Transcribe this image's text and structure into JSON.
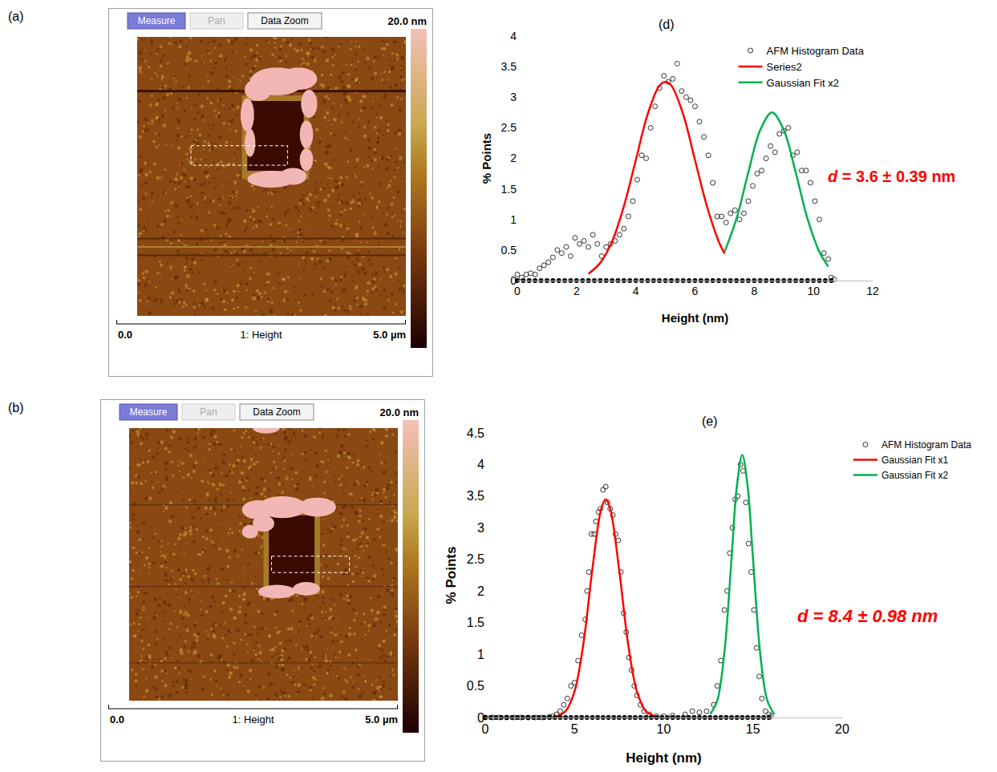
{
  "afm_images": [
    {
      "panel": "(a)",
      "buttons": [
        "Measure",
        "Pan",
        "Data Zoom"
      ],
      "color_scale_label": "20.0 nm",
      "x_start": "0.0",
      "channel": "1: Height",
      "x_end": "5.0 µm"
    },
    {
      "panel": "(b)",
      "buttons": [
        "Measure",
        "Pan",
        "Data Zoom"
      ],
      "color_scale_label": "20.0 nm",
      "x_start": "0.0",
      "channel": "1: Height",
      "x_end": "5.0 µm"
    }
  ],
  "chart_data": [
    {
      "type": "scatter",
      "title": "(d)",
      "x_label": "Height (nm)",
      "y_label": "% Points",
      "xlim": [
        0,
        12
      ],
      "xticks": [
        0,
        2,
        4,
        6,
        8,
        10,
        12
      ],
      "ylim": [
        0,
        4
      ],
      "yticks": [
        0,
        0.5,
        1,
        1.5,
        2,
        2.5,
        3,
        3.5,
        4
      ],
      "grid": false,
      "legend": "upper right",
      "annotations": [
        "d = 3.6 ± 0.39 nm"
      ],
      "series": [
        {
          "name": "AFM Histogram Data",
          "type": "scatter",
          "marker": "open_circle",
          "color": "#333333",
          "x": [
            0,
            0.15,
            0.3,
            0.45,
            0.6,
            0.75,
            0.9,
            1.05,
            1.2,
            1.35,
            1.5,
            1.65,
            1.8,
            1.95,
            2.1,
            2.25,
            2.4,
            2.55,
            2.7,
            2.85,
            3,
            3.15,
            3.3,
            3.45,
            3.6,
            3.75,
            3.9,
            4.05,
            4.2,
            4.35,
            4.5,
            4.65,
            4.8,
            4.95,
            5.1,
            5.25,
            5.4,
            5.55,
            5.7,
            5.85,
            6,
            6.15,
            6.3,
            6.45,
            6.6,
            6.75,
            6.9,
            7.05,
            7.2,
            7.35,
            7.5,
            7.65,
            7.8,
            7.95,
            8.1,
            8.25,
            8.4,
            8.55,
            8.7,
            8.85,
            9,
            9.15,
            9.3,
            9.45,
            9.6,
            9.75,
            9.9,
            10.05,
            10.2,
            10.35,
            10.5,
            10.6,
            10.7
          ],
          "values": [
            0.1,
            0.05,
            0.1,
            0.12,
            0.1,
            0.2,
            0.25,
            0.3,
            0.38,
            0.5,
            0.45,
            0.55,
            0.4,
            0.7,
            0.6,
            0.65,
            0.55,
            0.75,
            0.6,
            0.4,
            0.55,
            0.6,
            0.65,
            0.75,
            0.85,
            1.05,
            1.3,
            1.65,
            2.05,
            2,
            2.5,
            2.85,
            3.15,
            3.35,
            3.25,
            3.3,
            3.55,
            3.1,
            3,
            2.95,
            2.85,
            2.6,
            2.35,
            2.05,
            1.6,
            1.05,
            1.05,
            0.95,
            1.1,
            1.15,
            1,
            1.1,
            1.3,
            1.55,
            1.75,
            1.8,
            2,
            2.2,
            2.1,
            2.4,
            2.45,
            2.5,
            2.05,
            2.1,
            1.8,
            1.8,
            1.6,
            1.3,
            1,
            0.45,
            0.35,
            0.05,
            0.02
          ]
        },
        {
          "name": "Series2",
          "type": "line",
          "color": "#ff0000",
          "x": [
            2.4,
            2.8,
            3.2,
            3.6,
            4,
            4.4,
            4.8,
            5,
            5.2,
            5.6,
            6,
            6.4,
            6.8,
            7
          ],
          "values": [
            0.11,
            0.29,
            0.64,
            1.22,
            1.97,
            2.72,
            3.19,
            3.25,
            3.19,
            2.72,
            1.97,
            1.22,
            0.64,
            0.44
          ]
        },
        {
          "name": "Gaussian Fit x2",
          "type": "line",
          "color": "#00b050",
          "x": [
            7,
            7.4,
            7.8,
            8.2,
            8.6,
            9,
            9.4,
            9.8,
            10.2,
            10.5
          ],
          "values": [
            0.47,
            1.01,
            1.77,
            2.46,
            2.75,
            2.46,
            1.77,
            1.01,
            0.47,
            0.23
          ]
        },
        {
          "type": "scatter",
          "marker": "filled_circle",
          "color": "#000000",
          "x": [
            0,
            0.2,
            0.4,
            0.6,
            0.8,
            1,
            1.2,
            1.4,
            1.6,
            1.8,
            2,
            2.2,
            2.4,
            2.6,
            2.8,
            3,
            3.2,
            3.4,
            3.6,
            3.8,
            4,
            4.2,
            4.4,
            4.6,
            4.8,
            5,
            5.2,
            5.4,
            5.6,
            5.8,
            6,
            6.2,
            6.4,
            6.6,
            6.8,
            7,
            7.2,
            7.4,
            7.6,
            7.8,
            8,
            8.2,
            8.4,
            8.6,
            8.8,
            9,
            9.2,
            9.4,
            9.6,
            9.8,
            10,
            10.2,
            10.4,
            10.6
          ],
          "values": [
            0,
            0,
            0,
            0,
            0,
            0,
            0,
            0,
            0,
            0,
            0,
            0,
            0,
            0,
            0,
            0,
            0,
            0,
            0,
            0,
            0,
            0,
            0,
            0,
            0,
            0,
            0,
            0,
            0,
            0,
            0,
            0,
            0,
            0,
            0,
            0,
            0,
            0,
            0,
            0,
            0,
            0,
            0,
            0,
            0,
            0,
            0,
            0,
            0,
            0,
            0,
            0,
            0,
            0
          ]
        }
      ]
    },
    {
      "type": "scatter",
      "title": "(e)",
      "x_label": "Height (nm)",
      "y_label": "% Points",
      "xlim": [
        0,
        20
      ],
      "xticks": [
        0,
        5,
        10,
        15,
        20
      ],
      "ylim": [
        0,
        4.5
      ],
      "yticks": [
        0,
        0.5,
        1,
        1.5,
        2,
        2.5,
        3,
        3.5,
        4,
        4.5
      ],
      "grid": false,
      "legend": "right",
      "annotations": [
        "d = 8.4 ± 0.98 nm"
      ],
      "series": [
        {
          "name": "AFM Histogram Data",
          "type": "scatter",
          "marker": "open_circle",
          "color": "#333333",
          "x": [
            0,
            0.4,
            0.8,
            1.2,
            1.6,
            2,
            2.4,
            2.8,
            3.2,
            3.6,
            3.8,
            4,
            4.2,
            4.4,
            4.6,
            4.8,
            5,
            5.2,
            5.4,
            5.6,
            5.7,
            5.8,
            5.95,
            6.1,
            6.2,
            6.35,
            6.45,
            6.6,
            6.75,
            6.85,
            7,
            7.15,
            7.3,
            7.45,
            7.6,
            7.75,
            7.9,
            8.05,
            8.2,
            8.35,
            8.5,
            8.7,
            8.9,
            9.2,
            9.6,
            10,
            10.5,
            11.2,
            11.6,
            12,
            12.4,
            12.8,
            13,
            13.2,
            13.4,
            13.55,
            13.7,
            13.85,
            14,
            14.15,
            14.3,
            14.45,
            14.6,
            14.75,
            14.9,
            15.05,
            15.2,
            15.35,
            15.5,
            15.7,
            15.9,
            16
          ],
          "values": [
            0,
            0,
            0,
            0,
            0,
            0,
            0,
            0,
            0,
            0.01,
            0.02,
            0.05,
            0.1,
            0.2,
            0.3,
            0.5,
            0.55,
            0.9,
            1.3,
            1.55,
            2,
            2.3,
            2.9,
            2.9,
            3.1,
            3.25,
            3.3,
            3.6,
            3.65,
            3.4,
            3.3,
            3.2,
            2.9,
            2.8,
            2.3,
            1.65,
            1.35,
            0.95,
            0.75,
            0.5,
            0.35,
            0.2,
            0.1,
            0.05,
            0.02,
            0.02,
            0.03,
            0.05,
            0.1,
            0.08,
            0.1,
            0.2,
            0.5,
            0.9,
            1.7,
            2,
            2.6,
            3,
            3.45,
            3.5,
            4,
            3.9,
            3.4,
            2.75,
            2.3,
            1.7,
            1.1,
            0.65,
            0.3,
            0.1,
            0.05,
            0.02
          ]
        },
        {
          "name": "Gaussian Fit x1",
          "type": "line",
          "color": "#ff0000",
          "x": [
            4,
            4.5,
            5,
            5.5,
            6,
            6.5,
            6.75,
            7,
            7.5,
            8,
            8.5,
            9,
            9.5
          ],
          "values": [
            0.02,
            0.1,
            0.41,
            1.17,
            2.34,
            3.3,
            3.45,
            3.3,
            2.34,
            1.17,
            0.41,
            0.1,
            0.02
          ]
        },
        {
          "name": "Gaussian Fit x2",
          "type": "line",
          "color": "#00b050",
          "x": [
            12.6,
            13,
            13.4,
            13.8,
            14.1,
            14.4,
            14.7,
            15,
            15.4,
            15.8,
            16.2
          ],
          "values": [
            0.05,
            0.27,
            1.03,
            2.52,
            3.66,
            4.15,
            3.66,
            2.52,
            1.03,
            0.27,
            0.05
          ]
        },
        {
          "type": "scatter",
          "marker": "filled_circle",
          "color": "#000000",
          "x": [
            0,
            0.3,
            0.6,
            0.9,
            1.2,
            1.5,
            1.8,
            2.1,
            2.4,
            2.7,
            3,
            3.3,
            3.6,
            3.9,
            4.2,
            4.5,
            4.8,
            5.1,
            5.4,
            5.7,
            6,
            6.3,
            6.6,
            6.9,
            7.2,
            7.5,
            7.8,
            8.1,
            8.4,
            8.7,
            9,
            9.3,
            9.6,
            9.9,
            10.2,
            10.5,
            10.8,
            11.1,
            11.4,
            11.7,
            12,
            12.3,
            12.6,
            12.9,
            13.2,
            13.5,
            13.8,
            14.1,
            14.4,
            14.7,
            15,
            15.3,
            15.6,
            15.9
          ],
          "values": [
            0,
            0,
            0,
            0,
            0,
            0,
            0,
            0,
            0,
            0,
            0,
            0,
            0,
            0,
            0,
            0,
            0,
            0,
            0,
            0,
            0,
            0,
            0,
            0,
            0,
            0,
            0,
            0,
            0,
            0,
            0,
            0,
            0,
            0,
            0,
            0,
            0,
            0,
            0,
            0,
            0,
            0,
            0,
            0,
            0,
            0,
            0,
            0,
            0,
            0,
            0,
            0,
            0,
            0
          ]
        }
      ]
    }
  ]
}
